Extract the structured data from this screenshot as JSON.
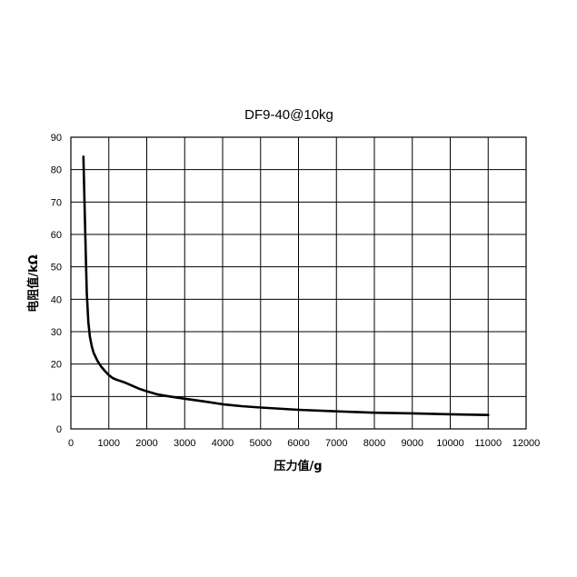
{
  "chart_data": {
    "type": "line",
    "title": "DF9-40@10kg",
    "xlabel": "压力值/g",
    "ylabel": "电阻值/kΩ",
    "xlim": [
      0,
      12000
    ],
    "ylim": [
      0,
      90
    ],
    "xticks": [
      0,
      1000,
      2000,
      3000,
      4000,
      5000,
      6000,
      7000,
      8000,
      9000,
      10000,
      11000,
      12000
    ],
    "yticks": [
      0,
      10,
      20,
      30,
      40,
      50,
      60,
      70,
      80,
      90
    ],
    "grid": true,
    "legend": "none",
    "line_color": "#000000",
    "series": [
      {
        "x": [
          330,
          360,
          390,
          420,
          460,
          500,
          550,
          600,
          700,
          800,
          900,
          1000,
          1100,
          1200,
          1400,
          1600,
          1800,
          2000,
          2300,
          2600,
          3000,
          3500,
          4000,
          4500,
          5000,
          6000,
          7000,
          8000,
          9000,
          10000,
          11000
        ],
        "y": [
          84,
          70,
          55,
          42,
          33,
          28.5,
          25.5,
          23.5,
          21,
          19.2,
          17.8,
          16.6,
          15.7,
          15.2,
          14.4,
          13.4,
          12.4,
          11.6,
          10.6,
          10,
          9.3,
          8.5,
          7.6,
          7,
          6.6,
          5.9,
          5.4,
          5,
          4.8,
          4.5,
          4.3
        ]
      }
    ]
  }
}
